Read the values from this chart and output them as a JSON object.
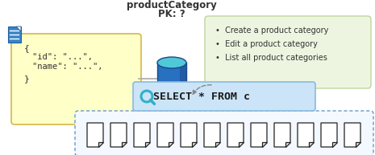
{
  "title_line1": "productCategory",
  "title_line2": "PK: ?",
  "json_box_color": "#ffffc8",
  "json_box_border": "#d4b84a",
  "green_box_color": "#edf5e0",
  "green_box_border": "#c0d4a0",
  "green_box_items": [
    "Create a product category",
    "Edit a product category",
    "List all product categories"
  ],
  "select_box_color": "#cce4f7",
  "select_box_border": "#88bbdd",
  "select_text": "SELECT * FROM c",
  "doc_box_border": "#6699cc",
  "doc_box_fill": "#f4f8ff",
  "doc_count": 12,
  "cylinder_top_color": "#50c8d8",
  "cylinder_body_color": "#2870c0",
  "cylinder_shadow": "#1a4888",
  "magnifier_color": "#30b0c8",
  "doc_icon_color": "#222222",
  "doc_fill_color": "#ffffff",
  "line_color": "#aaaaaa",
  "arrow_color": "#888888",
  "text_color": "#333333"
}
